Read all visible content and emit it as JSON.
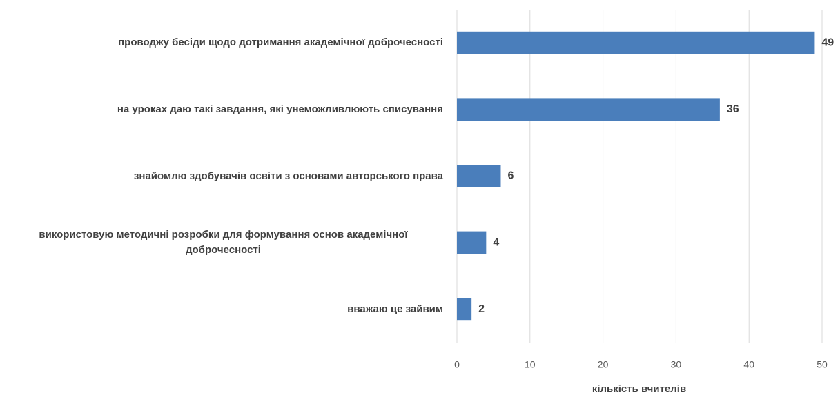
{
  "chart_data": {
    "type": "barh",
    "categories": [
      "проводжу бесіди щодо дотримання академічної доброчесності",
      "на уроках даю такі завдання, які унеможливлюють списування",
      "знайомлю здобувачів освіти з основами авторського права",
      "використовую методичні розробки для формування основ академічної доброчесності",
      "вважаю це зайвим"
    ],
    "values": [
      49,
      36,
      6,
      4,
      2
    ],
    "color": "#4a7ebb",
    "xlabel": "кількість вчителів",
    "xlim": [
      0,
      50
    ],
    "xticks": [
      0,
      10,
      20,
      30,
      40,
      50
    ],
    "grid": true
  }
}
